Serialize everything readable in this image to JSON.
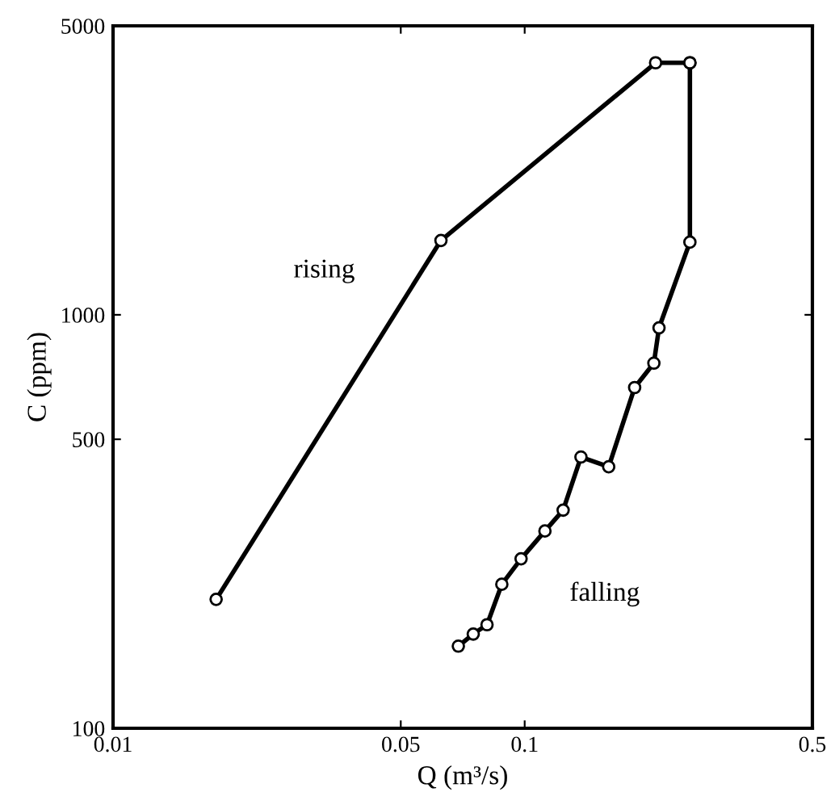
{
  "chart_data": {
    "type": "line",
    "xlabel": "Q (m³/s)",
    "ylabel": "C (ppm)",
    "log": "xy",
    "marker": "circle",
    "line_style": "solid",
    "grid": false,
    "xlim": [
      0.01,
      0.5
    ],
    "xticks": [
      0.01,
      0.05,
      0.1,
      0.5
    ],
    "ylim": [
      100,
      5000
    ],
    "yticks": [
      100,
      500,
      1000,
      5000
    ],
    "series": [
      {
        "color": "#000000",
        "x": [
          0.0178,
          0.0626,
          0.208,
          0.252
        ],
        "values": [
          205,
          1513,
          4070,
          4070
        ]
      },
      {
        "color": "#000000",
        "x": [
          0.252,
          0.252,
          0.212,
          0.206,
          0.185,
          0.16,
          0.137,
          0.124,
          0.112,
          0.098,
          0.088,
          0.081,
          0.075,
          0.069
        ],
        "values": [
          4070,
          1499,
          930,
          764,
          667,
          429,
          453,
          337,
          300,
          257,
          223,
          178,
          169,
          158
        ]
      }
    ],
    "annotations": [
      "rising",
      "falling"
    ]
  }
}
